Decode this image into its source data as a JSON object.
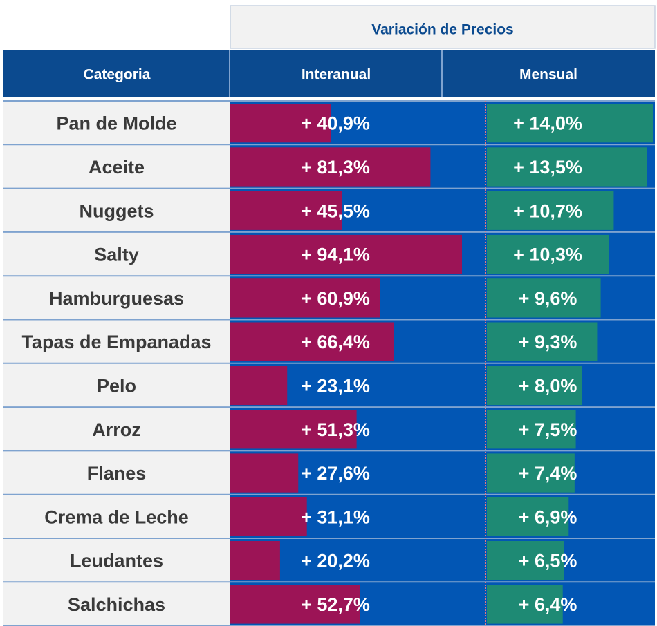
{
  "chart_data": {
    "type": "table",
    "title": "",
    "group_header": "Variación de Precios",
    "column_headers": [
      "Categoria",
      "Interanual",
      "Mensual"
    ],
    "categories": [
      "Pan de Molde",
      "Aceite",
      "Nuggets",
      "Salty",
      "Hamburguesas",
      "Tapas de Empanadas",
      "Pelo",
      "Arroz",
      "Flanes",
      "Crema de Leche",
      "Leudantes",
      "Salchichas"
    ],
    "series": [
      {
        "values": [
          40.9,
          81.3,
          45.5,
          94.1,
          60.9,
          66.4,
          23.1,
          51.3,
          27.6,
          31.1,
          20.2,
          52.7
        ],
        "labels": [
          "+ 40,9%",
          "+ 81,3%",
          "+ 45,5%",
          "+ 94,1%",
          "+ 60,9%",
          "+ 66,4%",
          "+ 23,1%",
          "+ 51,3%",
          "+ 27,6%",
          "+ 31,1%",
          "+ 20,2%",
          "+ 52,7%"
        ],
        "color": "#9c1456"
      },
      {
        "values": [
          14.0,
          13.5,
          10.7,
          10.3,
          9.6,
          9.3,
          8.0,
          7.5,
          7.4,
          6.9,
          6.5,
          6.4
        ],
        "labels": [
          "+ 14,0%",
          "+ 13,5%",
          "+ 10,7%",
          "+ 10,3%",
          "+ 9,6%",
          "+ 9,3%",
          "+ 8,0%",
          "+ 7,5%",
          "+ 7,4%",
          "+ 6,9%",
          "+ 6,5%",
          "+ 6,4%"
        ],
        "color": "#1e8a74"
      }
    ],
    "colors": {
      "header_bg": "#0b4a8f",
      "group_header_bg": "#f2f2f2",
      "group_header_text": "#0b4a8f",
      "category_bg": "#f2f2f2",
      "category_text": "#3a3a3a",
      "bar_area_bg": "#0256b4",
      "separator": "#7fa3cf",
      "divider": "#e07a80",
      "label_text": "#ffffff"
    }
  }
}
